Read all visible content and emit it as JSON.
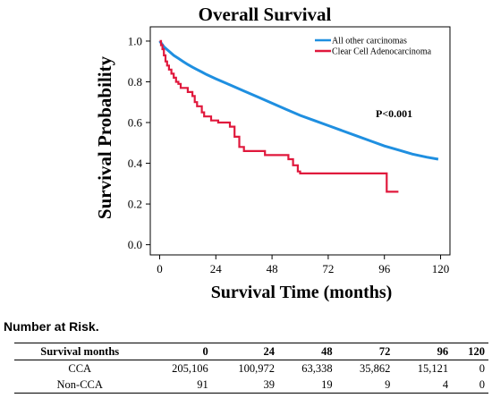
{
  "chart_data": {
    "type": "line",
    "title": "Overall Survival",
    "xlabel": "Survival Time (months)",
    "ylabel": "Survival Probability",
    "xlim": [
      -4,
      124
    ],
    "ylim": [
      -0.05,
      1.07
    ],
    "x_ticks": [
      0,
      24,
      48,
      72,
      96,
      120
    ],
    "y_ticks": [
      "0.0",
      "0.2",
      "0.4",
      "0.6",
      "0.8",
      "1.0"
    ],
    "annotation": "P<0.001",
    "legend_position": "top-right",
    "grid": false,
    "series": [
      {
        "name": "All other carcinomas",
        "color": "#1f8fe0",
        "step": false,
        "points": [
          [
            0,
            1.0
          ],
          [
            2,
            0.97
          ],
          [
            4,
            0.95
          ],
          [
            6,
            0.93
          ],
          [
            8,
            0.915
          ],
          [
            10,
            0.9
          ],
          [
            12,
            0.885
          ],
          [
            14,
            0.872
          ],
          [
            16,
            0.86
          ],
          [
            18,
            0.848
          ],
          [
            20,
            0.836
          ],
          [
            24,
            0.815
          ],
          [
            30,
            0.785
          ],
          [
            36,
            0.755
          ],
          [
            42,
            0.725
          ],
          [
            48,
            0.695
          ],
          [
            54,
            0.665
          ],
          [
            60,
            0.635
          ],
          [
            66,
            0.61
          ],
          [
            72,
            0.585
          ],
          [
            78,
            0.56
          ],
          [
            84,
            0.535
          ],
          [
            90,
            0.51
          ],
          [
            96,
            0.485
          ],
          [
            102,
            0.465
          ],
          [
            108,
            0.445
          ],
          [
            114,
            0.43
          ],
          [
            119,
            0.42
          ]
        ]
      },
      {
        "name": "Clear Cell Adenocarcinoma",
        "color": "#e0183c",
        "step": true,
        "points": [
          [
            0,
            1.0
          ],
          [
            0.6,
            0.98
          ],
          [
            1.2,
            0.96
          ],
          [
            1.8,
            0.93
          ],
          [
            2.5,
            0.9
          ],
          [
            3.2,
            0.88
          ],
          [
            4,
            0.86
          ],
          [
            5,
            0.84
          ],
          [
            6,
            0.82
          ],
          [
            7,
            0.8
          ],
          [
            8,
            0.79
          ],
          [
            9,
            0.77
          ],
          [
            12,
            0.75
          ],
          [
            14,
            0.73
          ],
          [
            15,
            0.7
          ],
          [
            16,
            0.68
          ],
          [
            18,
            0.65
          ],
          [
            19,
            0.63
          ],
          [
            22,
            0.61
          ],
          [
            25,
            0.6
          ],
          [
            30,
            0.58
          ],
          [
            32,
            0.53
          ],
          [
            34,
            0.48
          ],
          [
            36,
            0.46
          ],
          [
            45,
            0.44
          ],
          [
            55,
            0.42
          ],
          [
            57,
            0.39
          ],
          [
            59,
            0.36
          ],
          [
            60,
            0.35
          ],
          [
            97,
            0.26
          ],
          [
            102,
            0.26
          ]
        ]
      }
    ]
  },
  "risk_table": {
    "heading": "Number at Risk.",
    "columns": [
      "Survival months",
      "0",
      "24",
      "48",
      "72",
      "96",
      "120"
    ],
    "rows": [
      {
        "label": "CCA",
        "values": [
          "205,106",
          "100,972",
          "63,338",
          "35,862",
          "15,121",
          "0"
        ]
      },
      {
        "label": "Non-CCA",
        "values": [
          "91",
          "39",
          "19",
          "9",
          "4",
          "0"
        ]
      }
    ]
  }
}
